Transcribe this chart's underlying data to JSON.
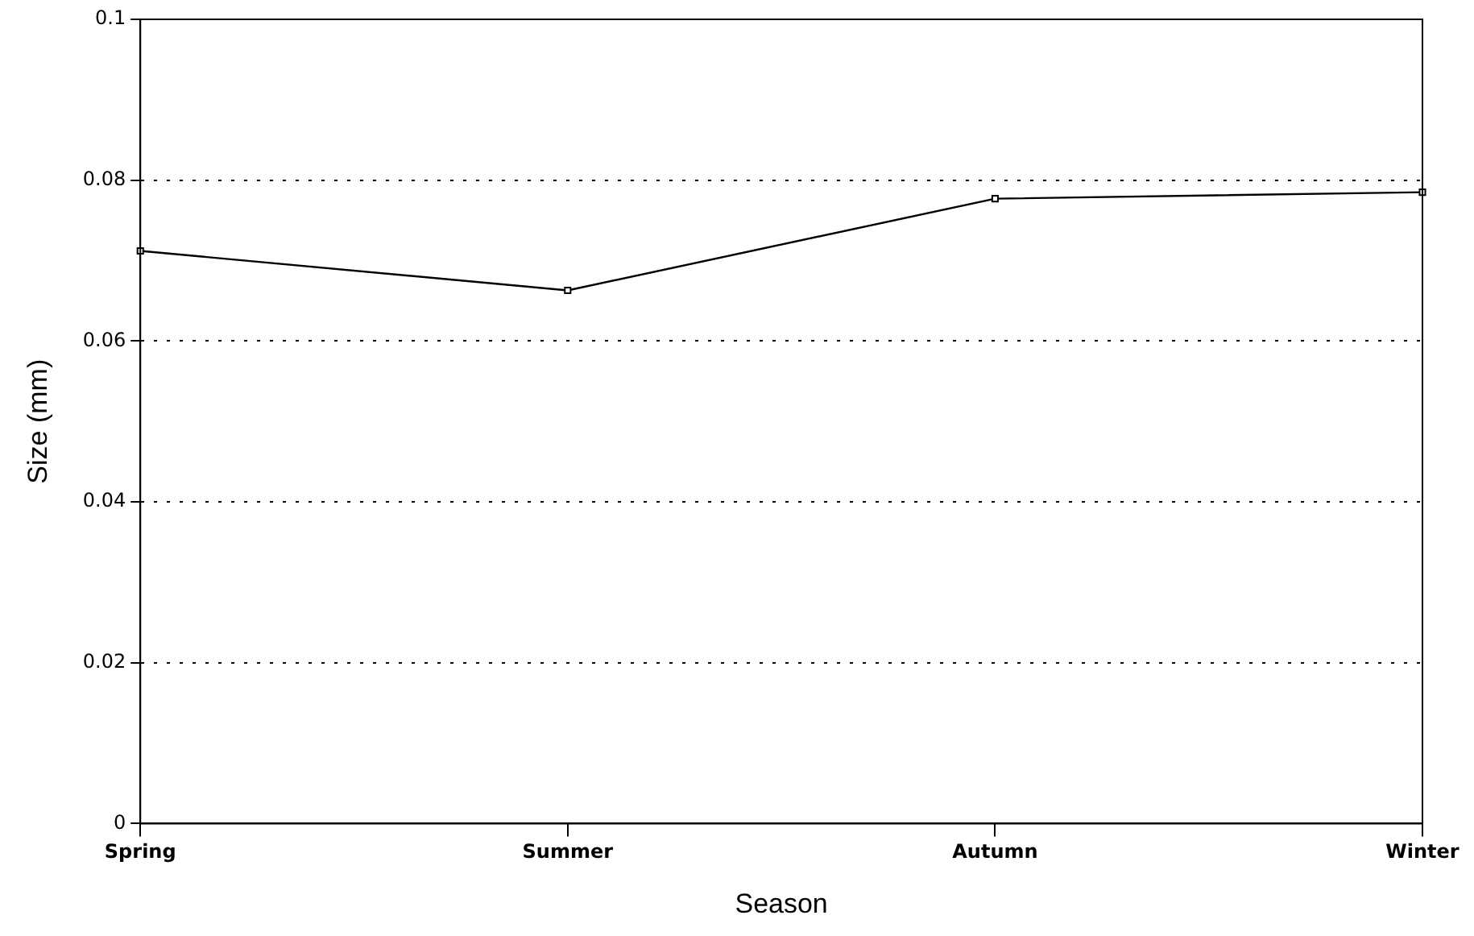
{
  "chart_data": {
    "type": "line",
    "xlabel": "Season",
    "ylabel": "Size (mm)",
    "categories": [
      "Spring",
      "Summer",
      "Autumn",
      "Winter"
    ],
    "series": [
      {
        "color": "#000000",
        "values": [
          0.0712,
          0.0663,
          0.0777,
          0.0785
        ]
      }
    ],
    "ylim": [
      0,
      0.1
    ],
    "yticks": [
      0,
      0.02,
      0.04,
      0.06,
      0.08,
      0.1
    ],
    "grid": "y",
    "marker": "square",
    "line_style": "solid",
    "legend": false
  }
}
